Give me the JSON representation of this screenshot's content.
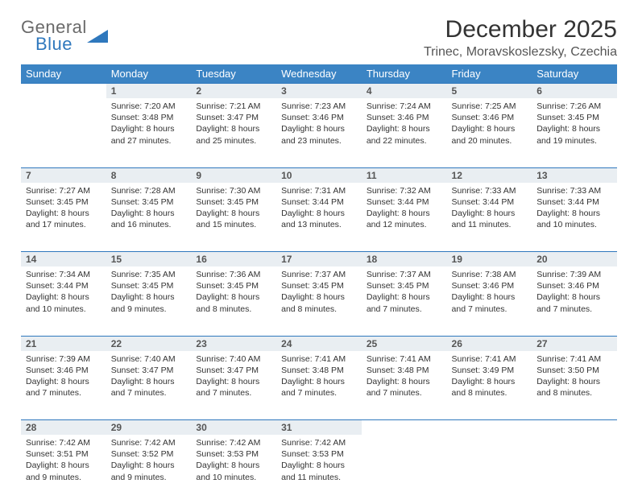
{
  "logo": {
    "line1": "General",
    "line2": "Blue",
    "shape_color": "#2f78bd",
    "text_gray": "#6a6a6a"
  },
  "title": "December 2025",
  "location": "Trinec, Moravskoslezsky, Czechia",
  "header_bg": "#3b84c4",
  "daynum_bg": "#e9eef2",
  "accent_line": "#2f78bd",
  "weekdays": [
    "Sunday",
    "Monday",
    "Tuesday",
    "Wednesday",
    "Thursday",
    "Friday",
    "Saturday"
  ],
  "weeks": [
    {
      "nums": [
        "",
        "1",
        "2",
        "3",
        "4",
        "5",
        "6"
      ],
      "cells": [
        null,
        {
          "sunrise": "7:20 AM",
          "sunset": "3:48 PM",
          "daylight": "8 hours and 27 minutes."
        },
        {
          "sunrise": "7:21 AM",
          "sunset": "3:47 PM",
          "daylight": "8 hours and 25 minutes."
        },
        {
          "sunrise": "7:23 AM",
          "sunset": "3:46 PM",
          "daylight": "8 hours and 23 minutes."
        },
        {
          "sunrise": "7:24 AM",
          "sunset": "3:46 PM",
          "daylight": "8 hours and 22 minutes."
        },
        {
          "sunrise": "7:25 AM",
          "sunset": "3:46 PM",
          "daylight": "8 hours and 20 minutes."
        },
        {
          "sunrise": "7:26 AM",
          "sunset": "3:45 PM",
          "daylight": "8 hours and 19 minutes."
        }
      ]
    },
    {
      "nums": [
        "7",
        "8",
        "9",
        "10",
        "11",
        "12",
        "13"
      ],
      "cells": [
        {
          "sunrise": "7:27 AM",
          "sunset": "3:45 PM",
          "daylight": "8 hours and 17 minutes."
        },
        {
          "sunrise": "7:28 AM",
          "sunset": "3:45 PM",
          "daylight": "8 hours and 16 minutes."
        },
        {
          "sunrise": "7:30 AM",
          "sunset": "3:45 PM",
          "daylight": "8 hours and 15 minutes."
        },
        {
          "sunrise": "7:31 AM",
          "sunset": "3:44 PM",
          "daylight": "8 hours and 13 minutes."
        },
        {
          "sunrise": "7:32 AM",
          "sunset": "3:44 PM",
          "daylight": "8 hours and 12 minutes."
        },
        {
          "sunrise": "7:33 AM",
          "sunset": "3:44 PM",
          "daylight": "8 hours and 11 minutes."
        },
        {
          "sunrise": "7:33 AM",
          "sunset": "3:44 PM",
          "daylight": "8 hours and 10 minutes."
        }
      ]
    },
    {
      "nums": [
        "14",
        "15",
        "16",
        "17",
        "18",
        "19",
        "20"
      ],
      "cells": [
        {
          "sunrise": "7:34 AM",
          "sunset": "3:44 PM",
          "daylight": "8 hours and 10 minutes."
        },
        {
          "sunrise": "7:35 AM",
          "sunset": "3:45 PM",
          "daylight": "8 hours and 9 minutes."
        },
        {
          "sunrise": "7:36 AM",
          "sunset": "3:45 PM",
          "daylight": "8 hours and 8 minutes."
        },
        {
          "sunrise": "7:37 AM",
          "sunset": "3:45 PM",
          "daylight": "8 hours and 8 minutes."
        },
        {
          "sunrise": "7:37 AM",
          "sunset": "3:45 PM",
          "daylight": "8 hours and 7 minutes."
        },
        {
          "sunrise": "7:38 AM",
          "sunset": "3:46 PM",
          "daylight": "8 hours and 7 minutes."
        },
        {
          "sunrise": "7:39 AM",
          "sunset": "3:46 PM",
          "daylight": "8 hours and 7 minutes."
        }
      ]
    },
    {
      "nums": [
        "21",
        "22",
        "23",
        "24",
        "25",
        "26",
        "27"
      ],
      "cells": [
        {
          "sunrise": "7:39 AM",
          "sunset": "3:46 PM",
          "daylight": "8 hours and 7 minutes."
        },
        {
          "sunrise": "7:40 AM",
          "sunset": "3:47 PM",
          "daylight": "8 hours and 7 minutes."
        },
        {
          "sunrise": "7:40 AM",
          "sunset": "3:47 PM",
          "daylight": "8 hours and 7 minutes."
        },
        {
          "sunrise": "7:41 AM",
          "sunset": "3:48 PM",
          "daylight": "8 hours and 7 minutes."
        },
        {
          "sunrise": "7:41 AM",
          "sunset": "3:48 PM",
          "daylight": "8 hours and 7 minutes."
        },
        {
          "sunrise": "7:41 AM",
          "sunset": "3:49 PM",
          "daylight": "8 hours and 8 minutes."
        },
        {
          "sunrise": "7:41 AM",
          "sunset": "3:50 PM",
          "daylight": "8 hours and 8 minutes."
        }
      ]
    },
    {
      "nums": [
        "28",
        "29",
        "30",
        "31",
        "",
        "",
        ""
      ],
      "cells": [
        {
          "sunrise": "7:42 AM",
          "sunset": "3:51 PM",
          "daylight": "8 hours and 9 minutes."
        },
        {
          "sunrise": "7:42 AM",
          "sunset": "3:52 PM",
          "daylight": "8 hours and 9 minutes."
        },
        {
          "sunrise": "7:42 AM",
          "sunset": "3:53 PM",
          "daylight": "8 hours and 10 minutes."
        },
        {
          "sunrise": "7:42 AM",
          "sunset": "3:53 PM",
          "daylight": "8 hours and 11 minutes."
        },
        null,
        null,
        null
      ]
    }
  ],
  "labels": {
    "sunrise": "Sunrise: ",
    "sunset": "Sunset: ",
    "daylight": "Daylight: "
  }
}
